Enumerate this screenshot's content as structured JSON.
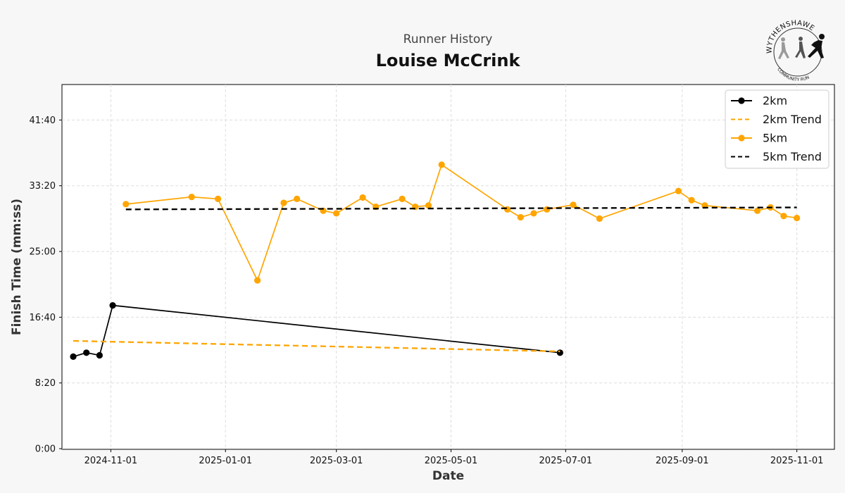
{
  "header": {
    "subtitle": "Runner History",
    "title": "Louise McCrink"
  },
  "logo": {
    "text_top": "WYTHENSHAWE",
    "text_bottom": "COMMUNITY RUN"
  },
  "colors": {
    "black": "#000000",
    "orange": "#FFA500",
    "grid": "#dddddd",
    "background": "#f7f7f7"
  },
  "chart_data": {
    "type": "line",
    "xlabel": "Date",
    "ylabel": "Finish Time (mm:ss)",
    "x_ticks": [
      "2024-11-01",
      "2025-01-01",
      "2025-03-01",
      "2025-05-01",
      "2025-07-01",
      "2025-09-01",
      "2025-11-01"
    ],
    "y_ticks": [
      "0:00",
      "8:20",
      "16:40",
      "25:00",
      "33:20",
      "41:40"
    ],
    "xlim": [
      "2024-10-06",
      "2025-11-21"
    ],
    "ylim": [
      "-0:05",
      "46:10"
    ],
    "grid": true,
    "legend_position": "top-right",
    "series": [
      {
        "name": "2km",
        "style": "solid",
        "marker": true,
        "color": "#000000",
        "points": [
          {
            "x": "2024-10-12",
            "y": "11:40"
          },
          {
            "x": "2024-10-19",
            "y": "12:10"
          },
          {
            "x": "2024-10-26",
            "y": "11:50"
          },
          {
            "x": "2024-11-02",
            "y": "18:10"
          },
          {
            "x": "2025-06-28",
            "y": "12:10"
          }
        ]
      },
      {
        "name": "2km Trend",
        "style": "dashed",
        "marker": false,
        "color": "#FFA500",
        "points": [
          {
            "x": "2024-10-12",
            "y": "13:40"
          },
          {
            "x": "2025-06-28",
            "y": "12:20"
          }
        ]
      },
      {
        "name": "5km",
        "style": "solid",
        "marker": true,
        "color": "#FFA500",
        "points": [
          {
            "x": "2024-11-09",
            "y": "31:00"
          },
          {
            "x": "2024-12-14",
            "y": "31:55"
          },
          {
            "x": "2024-12-28",
            "y": "31:40"
          },
          {
            "x": "2025-01-18",
            "y": "21:20"
          },
          {
            "x": "2025-02-01",
            "y": "31:10"
          },
          {
            "x": "2025-02-08",
            "y": "31:40"
          },
          {
            "x": "2025-02-22",
            "y": "30:10"
          },
          {
            "x": "2025-03-01",
            "y": "29:50"
          },
          {
            "x": "2025-03-15",
            "y": "31:50"
          },
          {
            "x": "2025-03-22",
            "y": "30:40"
          },
          {
            "x": "2025-04-05",
            "y": "31:40"
          },
          {
            "x": "2025-04-12",
            "y": "30:40"
          },
          {
            "x": "2025-04-19",
            "y": "30:50"
          },
          {
            "x": "2025-04-26",
            "y": "36:00"
          },
          {
            "x": "2025-05-31",
            "y": "30:20"
          },
          {
            "x": "2025-06-07",
            "y": "29:20"
          },
          {
            "x": "2025-06-14",
            "y": "29:50"
          },
          {
            "x": "2025-06-21",
            "y": "30:20"
          },
          {
            "x": "2025-07-05",
            "y": "30:55"
          },
          {
            "x": "2025-07-19",
            "y": "29:10"
          },
          {
            "x": "2025-08-30",
            "y": "32:40"
          },
          {
            "x": "2025-09-06",
            "y": "31:30"
          },
          {
            "x": "2025-09-13",
            "y": "30:50"
          },
          {
            "x": "2025-10-11",
            "y": "30:10"
          },
          {
            "x": "2025-10-18",
            "y": "30:35"
          },
          {
            "x": "2025-10-25",
            "y": "29:30"
          },
          {
            "x": "2025-11-01",
            "y": "29:15"
          }
        ]
      },
      {
        "name": "5km Trend",
        "style": "dashed",
        "marker": false,
        "color": "#000000",
        "points": [
          {
            "x": "2024-11-09",
            "y": "30:20"
          },
          {
            "x": "2025-11-01",
            "y": "30:35"
          }
        ]
      }
    ]
  }
}
